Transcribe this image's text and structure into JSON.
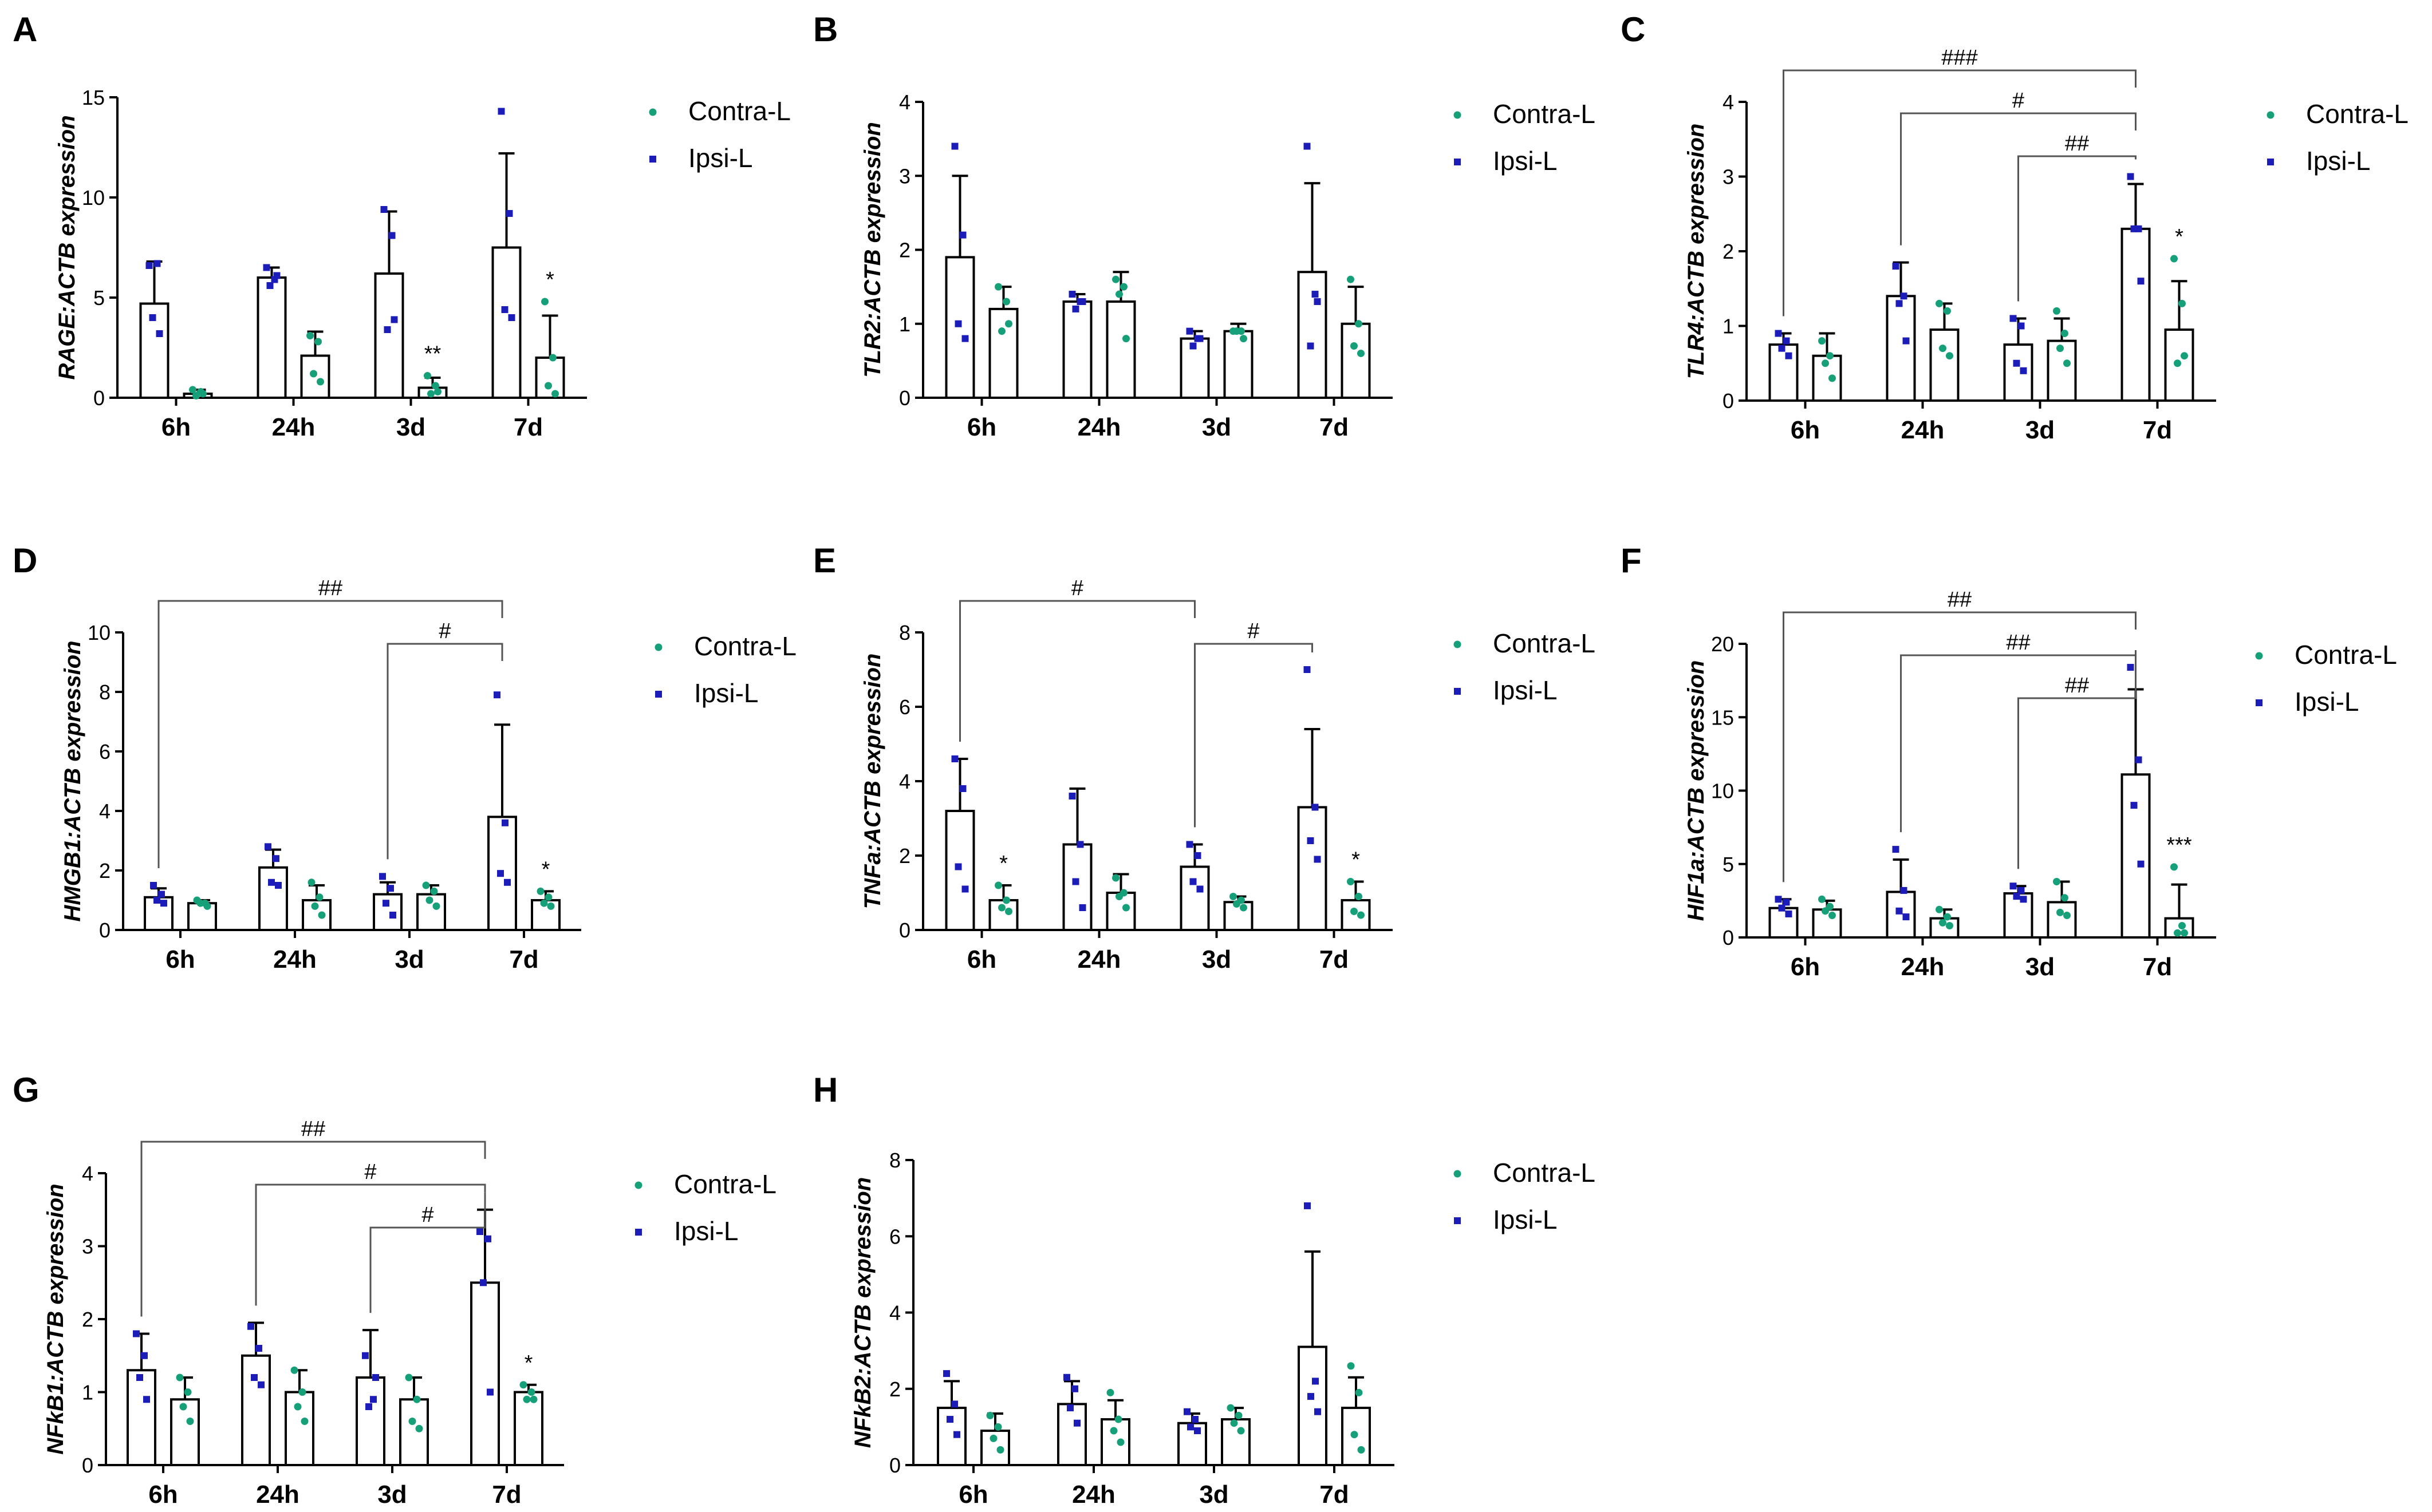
{
  "colors": {
    "contra": "#16a07a",
    "ipsi": "#1c1cb8",
    "axis": "#000000"
  },
  "legend": {
    "contra_label": "Contra-L",
    "ipsi_label": "Ipsi-L"
  },
  "chart_data": [
    {
      "panel": "A",
      "type": "bar",
      "ylabel": "RAGE:ACTB expression",
      "categories": [
        "6h",
        "24h",
        "3d",
        "7d"
      ],
      "ylim": [
        0,
        15
      ],
      "yticks": [
        0,
        5,
        10,
        15
      ],
      "series": [
        {
          "name": "Ipsi-L",
          "values": [
            4.7,
            6.0,
            6.2,
            7.5
          ],
          "errors": [
            2.1,
            0.5,
            3.1,
            4.7
          ],
          "points": [
            [
              6.6,
              6.7,
              4.0,
              3.2
            ],
            [
              6.5,
              5.9,
              5.6,
              6.1
            ],
            [
              9.4,
              8.1,
              3.4,
              3.9
            ],
            [
              14.3,
              9.2,
              4.4,
              4.0
            ]
          ]
        },
        {
          "name": "Contra-L",
          "values": [
            0.2,
            2.1,
            0.5,
            2.0
          ],
          "errors": [
            0.2,
            1.2,
            0.5,
            2.1
          ],
          "points": [
            [
              0.4,
              0.3,
              0.1,
              0.2
            ],
            [
              3.1,
              2.8,
              1.2,
              0.8
            ],
            [
              1.1,
              0.6,
              0.2,
              0.3
            ],
            [
              4.8,
              2.0,
              0.6,
              0.2
            ]
          ]
        }
      ],
      "annotations": [
        {
          "category": "3d",
          "text": "**"
        },
        {
          "category": "7d",
          "text": "*"
        }
      ],
      "comparisons": []
    },
    {
      "panel": "B",
      "type": "bar",
      "ylabel": "TLR2:ACTB expression",
      "categories": [
        "6h",
        "24h",
        "3d",
        "7d"
      ],
      "ylim": [
        0,
        4
      ],
      "yticks": [
        0,
        1,
        2,
        3,
        4
      ],
      "series": [
        {
          "name": "Ipsi-L",
          "values": [
            1.9,
            1.3,
            0.8,
            1.7
          ],
          "errors": [
            1.1,
            0.1,
            0.1,
            1.2
          ],
          "points": [
            [
              3.4,
              2.2,
              1.0,
              0.8
            ],
            [
              1.4,
              1.3,
              1.2,
              1.3
            ],
            [
              0.9,
              0.8,
              0.7,
              0.8
            ],
            [
              3.4,
              1.4,
              0.7,
              1.3
            ]
          ]
        },
        {
          "name": "Contra-L",
          "values": [
            1.2,
            1.3,
            0.9,
            1.0
          ],
          "errors": [
            0.3,
            0.4,
            0.1,
            0.5
          ],
          "points": [
            [
              1.5,
              1.3,
              0.9,
              1.0
            ],
            [
              1.6,
              1.5,
              1.4,
              0.8
            ],
            [
              0.9,
              0.9,
              0.9,
              0.8
            ],
            [
              1.6,
              1.0,
              0.7,
              0.6
            ]
          ]
        }
      ],
      "annotations": [],
      "comparisons": []
    },
    {
      "panel": "C",
      "type": "bar",
      "ylabel": "TLR4:ACTB expression",
      "categories": [
        "6h",
        "24h",
        "3d",
        "7d"
      ],
      "ylim": [
        0,
        4
      ],
      "yticks": [
        0,
        1,
        2,
        3,
        4
      ],
      "series": [
        {
          "name": "Ipsi-L",
          "values": [
            0.75,
            1.4,
            0.75,
            2.3
          ],
          "errors": [
            0.15,
            0.45,
            0.35,
            0.6
          ],
          "points": [
            [
              0.9,
              0.8,
              0.7,
              0.6
            ],
            [
              1.8,
              1.4,
              1.3,
              0.8
            ],
            [
              1.1,
              1.0,
              0.5,
              0.4
            ],
            [
              3.0,
              2.3,
              2.3,
              1.6
            ]
          ]
        },
        {
          "name": "Contra-L",
          "values": [
            0.6,
            0.95,
            0.8,
            0.95
          ],
          "errors": [
            0.3,
            0.35,
            0.3,
            0.65
          ],
          "points": [
            [
              0.8,
              0.6,
              0.5,
              0.3
            ],
            [
              1.3,
              1.2,
              0.7,
              0.6
            ],
            [
              1.2,
              0.9,
              0.7,
              0.5
            ],
            [
              1.9,
              1.3,
              0.5,
              0.6
            ]
          ]
        }
      ],
      "annotations": [
        {
          "category": "7d",
          "text": "*"
        }
      ],
      "comparisons": [
        {
          "from": "6h",
          "to": "7d",
          "text": "###"
        },
        {
          "from": "24h",
          "to": "7d",
          "text": "#"
        },
        {
          "from": "3d",
          "to": "7d",
          "text": "##"
        }
      ]
    },
    {
      "panel": "D",
      "type": "bar",
      "ylabel": "HMGB1:ACTB expression",
      "categories": [
        "6h",
        "24h",
        "3d",
        "7d"
      ],
      "ylim": [
        0,
        10
      ],
      "yticks": [
        0,
        2,
        4,
        6,
        8,
        10
      ],
      "series": [
        {
          "name": "Ipsi-L",
          "values": [
            1.1,
            2.1,
            1.2,
            3.8
          ],
          "errors": [
            0.3,
            0.6,
            0.4,
            3.1
          ],
          "points": [
            [
              1.5,
              1.2,
              1.0,
              0.9
            ],
            [
              2.8,
              2.4,
              1.6,
              1.5
            ],
            [
              1.8,
              1.4,
              0.9,
              0.5
            ],
            [
              7.9,
              3.6,
              1.9,
              1.6
            ]
          ]
        },
        {
          "name": "Contra-L",
          "values": [
            0.9,
            1.0,
            1.2,
            1.0
          ],
          "errors": [
            0.1,
            0.5,
            0.3,
            0.3
          ],
          "points": [
            [
              1.0,
              0.9,
              0.9,
              0.8
            ],
            [
              1.6,
              1.1,
              0.8,
              0.5
            ],
            [
              1.5,
              1.3,
              1.0,
              0.8
            ],
            [
              1.3,
              1.1,
              0.9,
              0.8
            ]
          ]
        }
      ],
      "annotations": [
        {
          "category": "7d",
          "text": "*"
        }
      ],
      "comparisons": [
        {
          "from": "6h",
          "to": "7d",
          "text": "##"
        },
        {
          "from": "3d",
          "to": "7d",
          "text": "#"
        }
      ]
    },
    {
      "panel": "E",
      "type": "bar",
      "ylabel": "TNFa:ACTB expression",
      "categories": [
        "6h",
        "24h",
        "3d",
        "7d"
      ],
      "ylim": [
        0,
        8
      ],
      "yticks": [
        0,
        2,
        4,
        6,
        8
      ],
      "series": [
        {
          "name": "Ipsi-L",
          "values": [
            3.2,
            2.3,
            1.7,
            3.3
          ],
          "errors": [
            1.4,
            1.5,
            0.6,
            2.1
          ],
          "points": [
            [
              4.6,
              3.8,
              1.7,
              1.1
            ],
            [
              3.6,
              2.3,
              1.3,
              0.6
            ],
            [
              2.3,
              2.0,
              1.3,
              1.1
            ],
            [
              7.0,
              3.3,
              2.4,
              1.9
            ]
          ]
        },
        {
          "name": "Contra-L",
          "values": [
            0.8,
            1.0,
            0.75,
            0.8
          ],
          "errors": [
            0.4,
            0.5,
            0.15,
            0.5
          ],
          "points": [
            [
              1.2,
              0.8,
              0.6,
              0.5
            ],
            [
              1.4,
              1.0,
              0.9,
              0.6
            ],
            [
              0.9,
              0.8,
              0.7,
              0.6
            ],
            [
              1.3,
              0.9,
              0.5,
              0.4
            ]
          ]
        }
      ],
      "annotations": [
        {
          "category": "6h",
          "text": "*"
        },
        {
          "category": "7d",
          "text": "*"
        }
      ],
      "comparisons": [
        {
          "from": "6h",
          "to": "3d",
          "text": "#"
        },
        {
          "from": "3d",
          "to": "7d",
          "text": "#"
        }
      ]
    },
    {
      "panel": "F",
      "type": "bar",
      "ylabel": "HIF1a:ACTB expression",
      "categories": [
        "6h",
        "24h",
        "3d",
        "7d"
      ],
      "ylim": [
        0,
        20
      ],
      "yticks": [
        0,
        5,
        10,
        15,
        20
      ],
      "series": [
        {
          "name": "Ipsi-L",
          "values": [
            2.0,
            3.1,
            3.0,
            11.1
          ],
          "errors": [
            0.6,
            2.2,
            0.5,
            5.8
          ],
          "points": [
            [
              2.6,
              2.4,
              2.0,
              1.6
            ],
            [
              6.0,
              3.2,
              1.8,
              1.4
            ],
            [
              3.5,
              3.2,
              2.8,
              2.6
            ],
            [
              18.4,
              12.1,
              9.0,
              5.0
            ]
          ]
        },
        {
          "name": "Contra-L",
          "values": [
            1.9,
            1.3,
            2.4,
            1.3
          ],
          "errors": [
            0.6,
            0.6,
            1.4,
            2.3
          ],
          "points": [
            [
              2.6,
              2.1,
              1.8,
              1.5
            ],
            [
              1.9,
              1.4,
              1.0,
              0.8
            ],
            [
              3.8,
              2.7,
              1.7,
              1.5
            ],
            [
              4.8,
              0.8,
              0.3,
              0.3
            ]
          ]
        }
      ],
      "annotations": [
        {
          "category": "7d",
          "text": "***"
        }
      ],
      "comparisons": [
        {
          "from": "6h",
          "to": "7d",
          "text": "##"
        },
        {
          "from": "24h",
          "to": "7d",
          "text": "##"
        },
        {
          "from": "3d",
          "to": "7d",
          "text": "##"
        }
      ]
    },
    {
      "panel": "G",
      "type": "bar",
      "ylabel": "NFkB1:ACTB expression",
      "categories": [
        "6h",
        "24h",
        "3d",
        "7d"
      ],
      "ylim": [
        0,
        4
      ],
      "yticks": [
        0,
        1,
        2,
        3,
        4
      ],
      "series": [
        {
          "name": "Ipsi-L",
          "values": [
            1.3,
            1.5,
            1.2,
            2.5
          ],
          "errors": [
            0.5,
            0.45,
            0.65,
            1.0
          ],
          "points": [
            [
              1.8,
              1.5,
              1.2,
              0.9
            ],
            [
              1.9,
              1.6,
              1.2,
              1.1
            ],
            [
              1.5,
              0.9,
              0.8,
              1.2
            ],
            [
              3.2,
              3.1,
              2.5,
              1.0
            ]
          ]
        },
        {
          "name": "Contra-L",
          "values": [
            0.9,
            1.0,
            0.9,
            1.0
          ],
          "errors": [
            0.3,
            0.3,
            0.3,
            0.1
          ],
          "points": [
            [
              1.2,
              1.0,
              0.8,
              0.6
            ],
            [
              1.3,
              1.0,
              0.8,
              0.6
            ],
            [
              1.2,
              0.9,
              0.6,
              0.5
            ],
            [
              1.1,
              1.0,
              0.9,
              0.9
            ]
          ]
        }
      ],
      "annotations": [
        {
          "category": "7d",
          "text": "*"
        }
      ],
      "comparisons": [
        {
          "from": "6h",
          "to": "7d",
          "text": "##"
        },
        {
          "from": "24h",
          "to": "7d",
          "text": "#"
        },
        {
          "from": "3d",
          "to": "7d",
          "text": "#"
        }
      ]
    },
    {
      "panel": "H",
      "type": "bar",
      "ylabel": "NFkB2:ACTB expression",
      "categories": [
        "6h",
        "24h",
        "3d",
        "7d"
      ],
      "ylim": [
        0,
        8
      ],
      "yticks": [
        0,
        2,
        4,
        6,
        8
      ],
      "series": [
        {
          "name": "Ipsi-L",
          "values": [
            1.5,
            1.6,
            1.1,
            3.1
          ],
          "errors": [
            0.7,
            0.6,
            0.25,
            2.5
          ],
          "points": [
            [
              2.4,
              1.6,
              1.2,
              0.8
            ],
            [
              2.3,
              2.0,
              1.5,
              1.1
            ],
            [
              1.4,
              1.2,
              1.0,
              0.9
            ],
            [
              6.8,
              2.2,
              1.8,
              1.4
            ]
          ]
        },
        {
          "name": "Contra-L",
          "values": [
            0.9,
            1.2,
            1.2,
            1.5
          ],
          "errors": [
            0.45,
            0.5,
            0.3,
            0.8
          ],
          "points": [
            [
              1.3,
              1.0,
              0.7,
              0.4
            ],
            [
              1.9,
              1.2,
              0.9,
              0.6
            ],
            [
              1.5,
              1.3,
              1.1,
              0.9
            ],
            [
              2.6,
              1.9,
              0.8,
              0.4
            ]
          ]
        }
      ],
      "annotations": [],
      "comparisons": []
    }
  ]
}
